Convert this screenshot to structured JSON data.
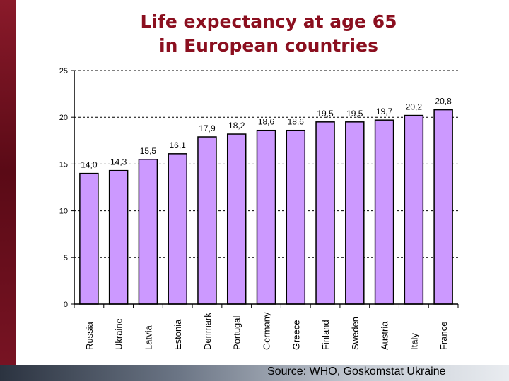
{
  "title_line1": "Life expectancy at age 65",
  "title_line2": "in European countries",
  "source": "Source: WHO, Goskomstat Ukraine",
  "colors": {
    "accent": "#8b0f1f",
    "bar_fill": "#cc99ff",
    "bar_stroke": "#000000",
    "grid": "#000000"
  },
  "chart_data": {
    "type": "bar",
    "title": "Life expectancy at age 65 in European countries",
    "xlabel": "",
    "ylabel": "",
    "ylim": [
      0,
      25
    ],
    "yticks": [
      0,
      5,
      10,
      15,
      20,
      25
    ],
    "grid": "horizontal dashed",
    "categories": [
      "Russia",
      "Ukraine",
      "Latvia",
      "Estonia",
      "Denmark",
      "Portugal",
      "Germany",
      "Greece",
      "Finland",
      "Sweden",
      "Austria",
      "Italy",
      "France"
    ],
    "values": [
      14.0,
      14.3,
      15.5,
      16.1,
      17.9,
      18.2,
      18.6,
      18.6,
      19.5,
      19.5,
      19.7,
      20.2,
      20.8
    ],
    "value_labels": [
      "14,0",
      "14,3",
      "15,5",
      "16,1",
      "17,9",
      "18,2",
      "18,6",
      "18,6",
      "19,5",
      "19,5",
      "19,7",
      "20,2",
      "20,8"
    ]
  }
}
